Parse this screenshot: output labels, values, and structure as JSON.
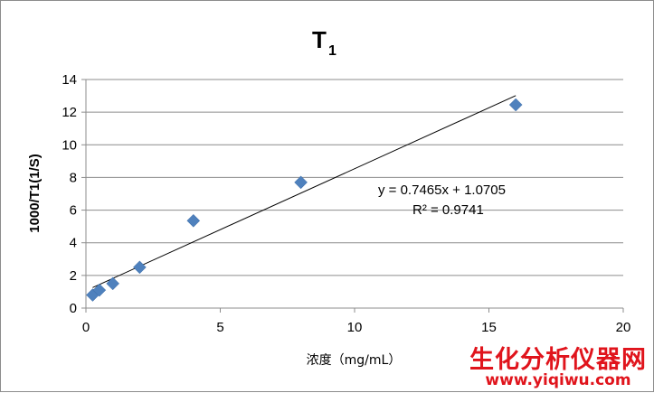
{
  "chart_data": {
    "type": "scatter",
    "title": "T",
    "title_subscript": "1",
    "xlabel": "浓度（mg/mL）",
    "ylabel": "1000/T1(1/S)",
    "xlim": [
      0,
      20
    ],
    "ylim": [
      0,
      14
    ],
    "x_ticks": [
      "0",
      "5",
      "10",
      "15",
      "20"
    ],
    "y_ticks": [
      "0",
      "2",
      "4",
      "6",
      "8",
      "10",
      "12",
      "14"
    ],
    "grid": true,
    "legend": "none",
    "marker_color": "#4f81bd",
    "series": [
      {
        "x": [
          0.25,
          0.5,
          1,
          2,
          4,
          8,
          16
        ],
        "y": [
          0.8,
          1.1,
          1.5,
          2.5,
          5.35,
          7.7,
          12.45
        ]
      }
    ],
    "trendline": {
      "type": "linear",
      "slope": 0.7465,
      "intercept": 1.0705,
      "x_range": [
        0.25,
        16
      ],
      "equation": "y = 0.7465x + 1.0705",
      "r_squared": "R² = 0.9741"
    }
  },
  "watermark": {
    "text": "生化分析仪器网",
    "url": "www.yiqiwu.com",
    "color": "#e0141c"
  }
}
